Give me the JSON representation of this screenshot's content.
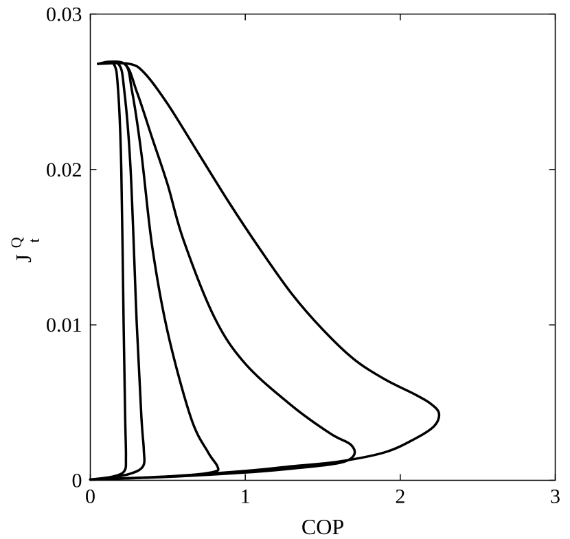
{
  "chart_data": {
    "type": "line",
    "title": "",
    "xlabel": "COP",
    "ylabel": {
      "main": "J",
      "sup": "Q",
      "sub": "t"
    },
    "xlim": [
      0,
      3
    ],
    "ylim": [
      0,
      0.03
    ],
    "xticks": [
      0,
      1,
      2,
      3
    ],
    "xtick_labels": [
      "0",
      "1",
      "2",
      "3"
    ],
    "yticks": [
      0,
      0.01,
      0.02,
      0.03
    ],
    "ytick_labels": [
      "0",
      "0.01",
      "0.02",
      "0.03"
    ],
    "grid": false,
    "legend": "none",
    "line_color": "#000000",
    "series": [
      {
        "points": [
          [
            0.05,
            0.0268
          ],
          [
            0.15,
            0.0268
          ],
          [
            0.18,
            0.025
          ],
          [
            0.2,
            0.02
          ],
          [
            0.215,
            0.01
          ],
          [
            0.225,
            0.004
          ],
          [
            0.23,
            0.0015
          ],
          [
            0.22,
            0.0006
          ],
          [
            0.15,
            0.00025
          ],
          [
            0.05,
            0.0001
          ],
          [
            0.0,
            5e-05
          ]
        ]
      },
      {
        "points": [
          [
            0.05,
            0.0268
          ],
          [
            0.18,
            0.0268
          ],
          [
            0.22,
            0.025
          ],
          [
            0.26,
            0.02
          ],
          [
            0.3,
            0.01
          ],
          [
            0.33,
            0.004
          ],
          [
            0.345,
            0.002
          ],
          [
            0.34,
            0.0009
          ],
          [
            0.25,
            0.0004
          ],
          [
            0.1,
            0.00015
          ],
          [
            0.0,
            5e-05
          ]
        ]
      },
      {
        "points": [
          [
            0.05,
            0.0268
          ],
          [
            0.22,
            0.0268
          ],
          [
            0.27,
            0.025
          ],
          [
            0.33,
            0.021
          ],
          [
            0.4,
            0.015
          ],
          [
            0.5,
            0.0095
          ],
          [
            0.65,
            0.004
          ],
          [
            0.76,
            0.0018
          ],
          [
            0.82,
            0.0009
          ],
          [
            0.8,
            0.00055
          ],
          [
            0.6,
            0.0003
          ],
          [
            0.3,
            0.00015
          ],
          [
            0.0,
            5e-05
          ]
        ]
      },
      {
        "points": [
          [
            0.05,
            0.0268
          ],
          [
            0.22,
            0.0268
          ],
          [
            0.3,
            0.025
          ],
          [
            0.4,
            0.022
          ],
          [
            0.5,
            0.019
          ],
          [
            0.6,
            0.0155
          ],
          [
            0.8,
            0.0105
          ],
          [
            1.0,
            0.0075
          ],
          [
            1.3,
            0.0048
          ],
          [
            1.55,
            0.003
          ],
          [
            1.68,
            0.0023
          ],
          [
            1.7,
            0.0016
          ],
          [
            1.6,
            0.0011
          ],
          [
            1.3,
            0.00075
          ],
          [
            1.0,
            0.0005
          ],
          [
            0.5,
            0.00022
          ],
          [
            0.0,
            5e-05
          ]
        ]
      },
      {
        "points": [
          [
            0.05,
            0.0268
          ],
          [
            0.25,
            0.0268
          ],
          [
            0.35,
            0.0262
          ],
          [
            0.5,
            0.0242
          ],
          [
            0.7,
            0.021
          ],
          [
            0.9,
            0.0178
          ],
          [
            1.1,
            0.0148
          ],
          [
            1.3,
            0.012
          ],
          [
            1.5,
            0.0097
          ],
          [
            1.7,
            0.0078
          ],
          [
            1.9,
            0.0065
          ],
          [
            2.1,
            0.0055
          ],
          [
            2.2,
            0.0049
          ],
          [
            2.25,
            0.0043
          ],
          [
            2.22,
            0.0035
          ],
          [
            2.1,
            0.0027
          ],
          [
            1.9,
            0.0018
          ],
          [
            1.6,
            0.0012
          ],
          [
            1.3,
            0.0009
          ],
          [
            1.0,
            0.0006
          ],
          [
            0.5,
            0.00025
          ],
          [
            0.0,
            5e-05
          ]
        ]
      }
    ]
  }
}
